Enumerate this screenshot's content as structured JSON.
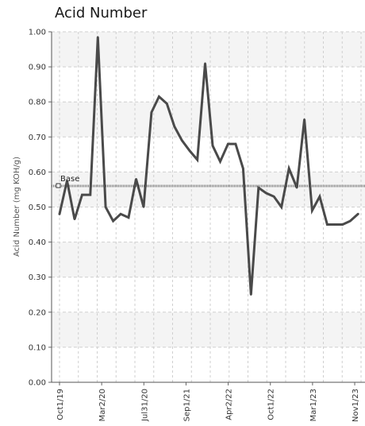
{
  "chart_data": {
    "type": "line",
    "title": "Acid Number",
    "ylabel": "Acid Number (mg KOH/g)",
    "xlabel": "",
    "ylim": [
      0,
      1
    ],
    "yticks": [
      "0.00",
      "0.10",
      "0.20",
      "0.30",
      "0.40",
      "0.50",
      "0.60",
      "0.70",
      "0.80",
      "0.90",
      "1.00"
    ],
    "xticks": [
      "Oct1/19",
      "Mar2/20",
      "Jul31/20",
      "Sep1/21",
      "Apr2/22",
      "Oct1/22",
      "Mar1/23",
      "Nov1/23"
    ],
    "grid": true,
    "colors": {
      "line": "#4a4a4a",
      "baseline": "#777777",
      "grid": "#cfcfcf",
      "band": "#f4f4f4"
    },
    "reference_line": {
      "label": "Base",
      "value": 0.56
    },
    "series": [
      {
        "values": [
          [
            0.0,
            0.48
          ],
          [
            0.025,
            0.575
          ],
          [
            0.05,
            0.465
          ],
          [
            0.075,
            0.535
          ],
          [
            0.102,
            0.535
          ],
          [
            0.127,
            0.985
          ],
          [
            0.153,
            0.5
          ],
          [
            0.178,
            0.46
          ],
          [
            0.203,
            0.48
          ],
          [
            0.229,
            0.47
          ],
          [
            0.254,
            0.58
          ],
          [
            0.279,
            0.5
          ],
          [
            0.305,
            0.77
          ],
          [
            0.33,
            0.815
          ],
          [
            0.356,
            0.795
          ],
          [
            0.381,
            0.73
          ],
          [
            0.406,
            0.69
          ],
          [
            0.432,
            0.66
          ],
          [
            0.457,
            0.635
          ],
          [
            0.483,
            0.91
          ],
          [
            0.508,
            0.675
          ],
          [
            0.533,
            0.63
          ],
          [
            0.559,
            0.68
          ],
          [
            0.584,
            0.68
          ],
          [
            0.609,
            0.61
          ],
          [
            0.635,
            0.25
          ],
          [
            0.66,
            0.555
          ],
          [
            0.685,
            0.54
          ],
          [
            0.711,
            0.53
          ],
          [
            0.736,
            0.5
          ],
          [
            0.761,
            0.61
          ],
          [
            0.787,
            0.555
          ],
          [
            0.812,
            0.75
          ],
          [
            0.838,
            0.49
          ],
          [
            0.863,
            0.53
          ],
          [
            0.888,
            0.45
          ],
          [
            0.914,
            0.45
          ],
          [
            0.939,
            0.45
          ],
          [
            0.964,
            0.46
          ],
          [
            0.99,
            0.48
          ]
        ]
      }
    ]
  }
}
